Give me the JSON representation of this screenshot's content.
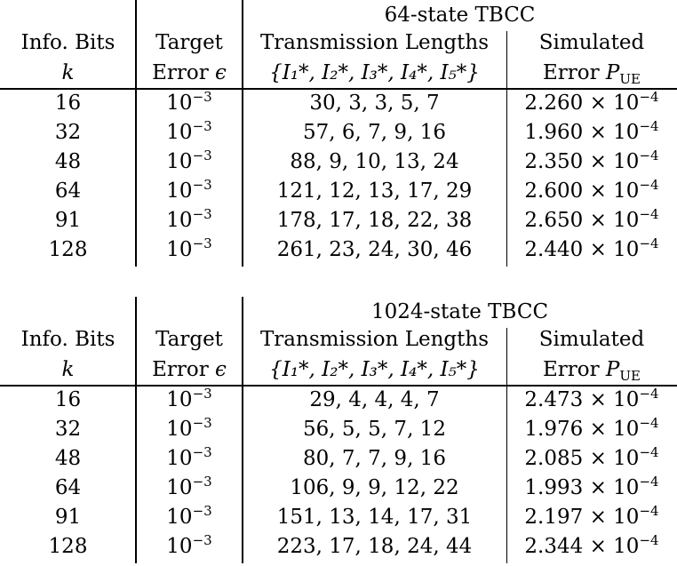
{
  "tables": [
    {
      "title": "64-state TBCC",
      "header": {
        "col1_line1": "Info. Bits",
        "col1_line2": "k",
        "col2_line1": "Target",
        "col2_line2_text": "Error ",
        "col2_line2_symbol": "ϵ",
        "col3_line1": "Transmission Lengths",
        "col3_line2": "{I₁*, I₂*, I₃*, I₄*, I₅*}",
        "col4_line1": "Simulated",
        "col4_line2_text": "Error ",
        "col4_line2_symbol": "P",
        "col4_line2_sub": "UE"
      },
      "rows": [
        {
          "k": "16",
          "target_base": "10",
          "target_exp": "−3",
          "lengths": "30, 3, 3, 5, 7",
          "pue_mantissa": "2.260 × 10",
          "pue_exp": "−4"
        },
        {
          "k": "32",
          "target_base": "10",
          "target_exp": "−3",
          "lengths": "57, 6, 7, 9, 16",
          "pue_mantissa": "1.960 × 10",
          "pue_exp": "−4"
        },
        {
          "k": "48",
          "target_base": "10",
          "target_exp": "−3",
          "lengths": "88, 9, 10, 13, 24",
          "pue_mantissa": "2.350 × 10",
          "pue_exp": "−4"
        },
        {
          "k": "64",
          "target_base": "10",
          "target_exp": "−3",
          "lengths": "121, 12, 13, 17, 29",
          "pue_mantissa": "2.600 × 10",
          "pue_exp": "−4"
        },
        {
          "k": "91",
          "target_base": "10",
          "target_exp": "−3",
          "lengths": "178, 17, 18, 22, 38",
          "pue_mantissa": "2.650 × 10",
          "pue_exp": "−4"
        },
        {
          "k": "128",
          "target_base": "10",
          "target_exp": "−3",
          "lengths": "261, 23, 24, 30, 46",
          "pue_mantissa": "2.440 × 10",
          "pue_exp": "−4"
        }
      ]
    },
    {
      "title": "1024-state TBCC",
      "header": {
        "col1_line1": "Info. Bits",
        "col1_line2": "k",
        "col2_line1": "Target",
        "col2_line2_text": "Error ",
        "col2_line2_symbol": "ϵ",
        "col3_line1": "Transmission Lengths",
        "col3_line2": "{I₁*, I₂*, I₃*, I₄*, I₅*}",
        "col4_line1": "Simulated",
        "col4_line2_text": "Error ",
        "col4_line2_symbol": "P",
        "col4_line2_sub": "UE"
      },
      "rows": [
        {
          "k": "16",
          "target_base": "10",
          "target_exp": "−3",
          "lengths": "29, 4, 4, 4, 7",
          "pue_mantissa": "2.473 × 10",
          "pue_exp": "−4"
        },
        {
          "k": "32",
          "target_base": "10",
          "target_exp": "−3",
          "lengths": "56, 5, 5, 7, 12",
          "pue_mantissa": "1.976 × 10",
          "pue_exp": "−4"
        },
        {
          "k": "48",
          "target_base": "10",
          "target_exp": "−3",
          "lengths": "80, 7, 7, 9, 16",
          "pue_mantissa": "2.085 × 10",
          "pue_exp": "−4"
        },
        {
          "k": "64",
          "target_base": "10",
          "target_exp": "−3",
          "lengths": "106, 9, 9, 12, 22",
          "pue_mantissa": "1.993 × 10",
          "pue_exp": "−4"
        },
        {
          "k": "91",
          "target_base": "10",
          "target_exp": "−3",
          "lengths": "151, 13, 14, 17, 31",
          "pue_mantissa": "2.197 × 10",
          "pue_exp": "−4"
        },
        {
          "k": "128",
          "target_base": "10",
          "target_exp": "−3",
          "lengths": "223, 17, 18, 24, 44",
          "pue_mantissa": "2.344 × 10",
          "pue_exp": "−4"
        }
      ]
    }
  ]
}
